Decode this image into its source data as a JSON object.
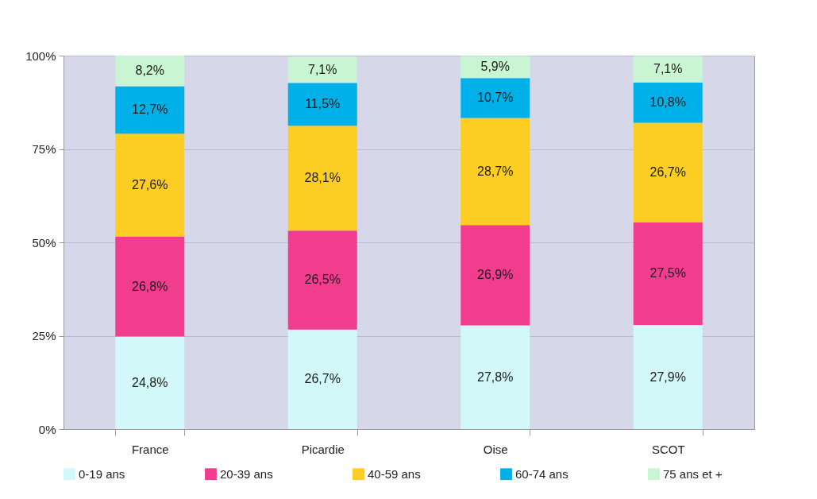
{
  "chart_data": {
    "type": "bar",
    "stacked": true,
    "categories": [
      "France",
      "Picardie",
      "Oise",
      "SCOT"
    ],
    "series": [
      {
        "name": "0-19 ans",
        "color": "#d2f8fa",
        "values": [
          24.8,
          26.7,
          27.8,
          27.9
        ],
        "value_labels": [
          "24,8%",
          "26,7%",
          "27,8%",
          "27,9%"
        ]
      },
      {
        "name": "20-39 ans",
        "color": "#f23c8e",
        "values": [
          26.8,
          26.5,
          26.9,
          27.5
        ],
        "value_labels": [
          "26,8%",
          "26,5%",
          "26,9%",
          "27,5%"
        ]
      },
      {
        "name": "40-59 ans",
        "color": "#fccd22",
        "values": [
          27.6,
          28.1,
          28.7,
          26.7
        ],
        "value_labels": [
          "27,6%",
          "28,1%",
          "28,7%",
          "26,7%"
        ]
      },
      {
        "name": "60-74 ans",
        "color": "#00b1e9",
        "values": [
          12.7,
          11.5,
          10.7,
          10.8
        ],
        "value_labels": [
          "12,7%",
          "11,5%",
          "10,7%",
          "10,8%"
        ]
      },
      {
        "name": "75 ans et +",
        "color": "#c9f5d2",
        "values": [
          8.2,
          7.1,
          5.9,
          7.1
        ],
        "value_labels": [
          "8,2%",
          "7,1%",
          "5,9%",
          "7,1%"
        ]
      }
    ],
    "ylim": [
      0,
      100.1
    ],
    "yticks": [
      {
        "value": 0,
        "label": "0%"
      },
      {
        "value": 25,
        "label": "25%"
      },
      {
        "value": 50,
        "label": "50%"
      },
      {
        "value": 75,
        "label": "75%"
      },
      {
        "value": 100,
        "label": "100%"
      }
    ],
    "grid": "y",
    "legend": "bottom"
  }
}
